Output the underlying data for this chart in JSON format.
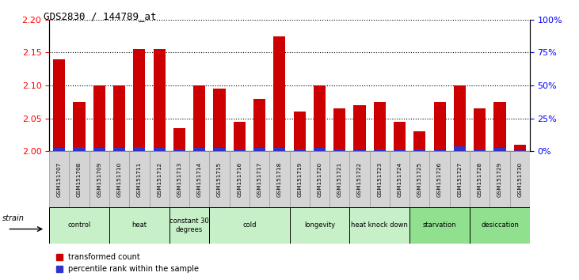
{
  "title": "GDS2830 / 144789_at",
  "samples": [
    "GSM151707",
    "GSM151708",
    "GSM151709",
    "GSM151710",
    "GSM151711",
    "GSM151712",
    "GSM151713",
    "GSM151714",
    "GSM151715",
    "GSM151716",
    "GSM151717",
    "GSM151718",
    "GSM151719",
    "GSM151720",
    "GSM151721",
    "GSM151722",
    "GSM151723",
    "GSM151724",
    "GSM151725",
    "GSM151726",
    "GSM151727",
    "GSM151728",
    "GSM151729",
    "GSM151730"
  ],
  "red_values": [
    2.14,
    2.075,
    2.1,
    2.1,
    2.155,
    2.155,
    2.035,
    2.1,
    2.095,
    2.045,
    2.08,
    2.175,
    2.06,
    2.1,
    2.065,
    2.07,
    2.075,
    2.045,
    2.03,
    2.075,
    2.1,
    2.065,
    2.075,
    2.01
  ],
  "blue_values": [
    3,
    4,
    3,
    3,
    4,
    3,
    2,
    3,
    3,
    2,
    3,
    3,
    2,
    3,
    2,
    2,
    2,
    2,
    2,
    2,
    5,
    2,
    3,
    1
  ],
  "groups": [
    {
      "label": "control",
      "start": 0,
      "end": 2,
      "color": "#c8f0c8"
    },
    {
      "label": "heat",
      "start": 3,
      "end": 5,
      "color": "#c8f0c8"
    },
    {
      "label": "constant 30\ndegrees",
      "start": 6,
      "end": 7,
      "color": "#c8f0c8"
    },
    {
      "label": "cold",
      "start": 8,
      "end": 11,
      "color": "#c8f0c8"
    },
    {
      "label": "longevity",
      "start": 12,
      "end": 14,
      "color": "#c8f0c8"
    },
    {
      "label": "heat knock down",
      "start": 15,
      "end": 17,
      "color": "#c8f0c8"
    },
    {
      "label": "starvation",
      "start": 18,
      "end": 20,
      "color": "#90e090"
    },
    {
      "label": "desiccation",
      "start": 21,
      "end": 23,
      "color": "#90e090"
    }
  ],
  "ylim_left": [
    2.0,
    2.2
  ],
  "ylim_right": [
    0,
    100
  ],
  "yticks_left": [
    2.0,
    2.05,
    2.1,
    2.15,
    2.2
  ],
  "yticks_right": [
    0,
    25,
    50,
    75,
    100
  ],
  "bar_color_red": "#cc0000",
  "bar_color_blue": "#3333cc",
  "bar_width": 0.6,
  "base": 2.0,
  "blue_scale": 0.0015
}
